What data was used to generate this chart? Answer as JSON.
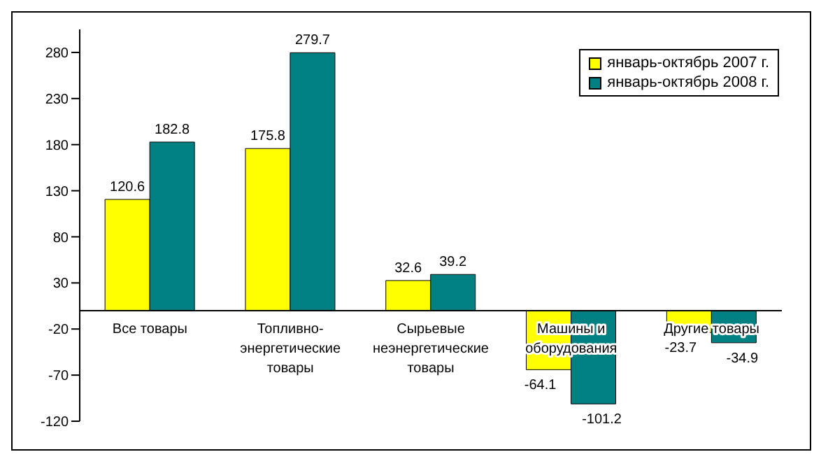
{
  "chart_data": {
    "type": "bar",
    "categories": [
      "Все товары",
      "Топливно-энергетические товары",
      "Сырьевые неэнергетические товары",
      "Машины и оборудования",
      "Другие товары"
    ],
    "series": [
      {
        "name": "январь-октябрь 2007 г.",
        "color": "#ffff00",
        "values": [
          120.6,
          175.8,
          32.6,
          -64.1,
          -23.7
        ]
      },
      {
        "name": "январь-октябрь 2008 г.",
        "color": "#008080",
        "values": [
          182.8,
          279.7,
          39.2,
          -101.2,
          -34.9
        ]
      }
    ],
    "ylim": [
      -120,
      305
    ],
    "yticks": [
      -120,
      -70,
      -20,
      30,
      80,
      130,
      180,
      230,
      280
    ],
    "data_labels": true,
    "grid": false,
    "legend": "top right"
  }
}
